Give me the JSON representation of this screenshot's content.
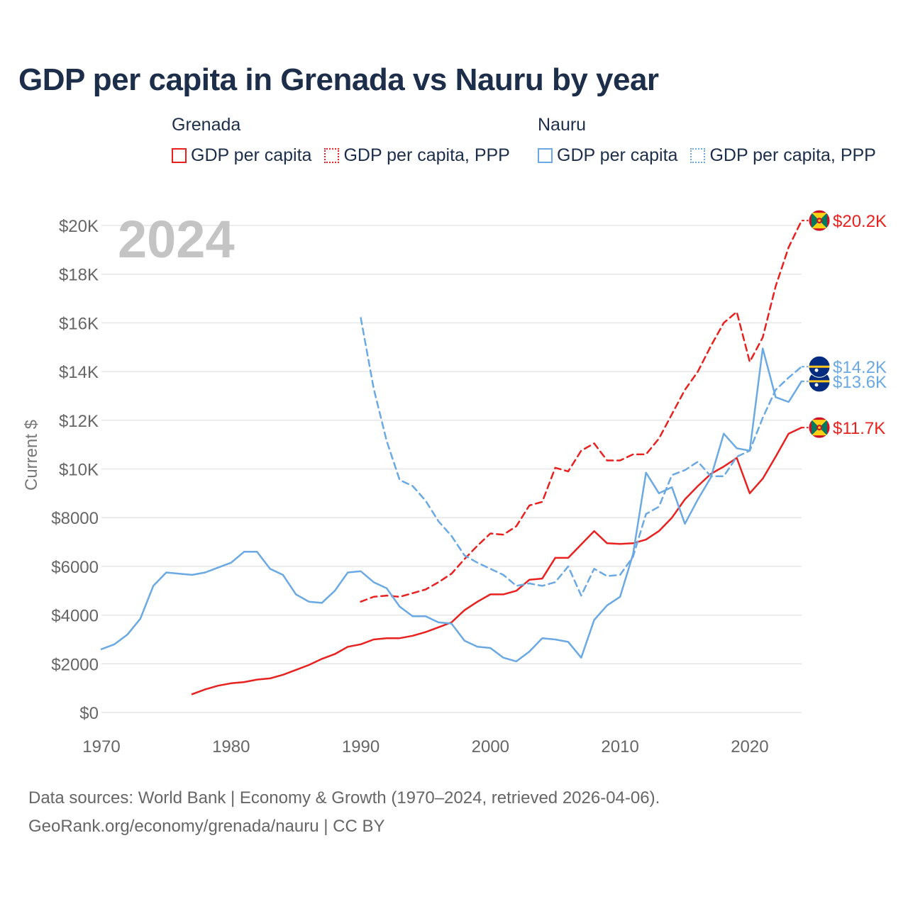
{
  "title": "GDP per capita in Grenada vs Nauru by year",
  "legend": {
    "groups": [
      {
        "name": "Grenada",
        "items": [
          {
            "label": "GDP per capita",
            "color": "#e8211f",
            "style": "solid"
          },
          {
            "label": "GDP per capita, PPP",
            "color": "#e8211f",
            "style": "dotted"
          }
        ]
      },
      {
        "name": "Nauru",
        "items": [
          {
            "label": "GDP per capita",
            "color": "#6aa9e3",
            "style": "solid"
          },
          {
            "label": "GDP per capita, PPP",
            "color": "#6aa9e3",
            "style": "dotted"
          }
        ]
      }
    ]
  },
  "chart_data": {
    "type": "line",
    "title": "GDP per capita in Grenada vs Nauru by year",
    "xlabel": "",
    "ylabel": "Current $",
    "year_label": "2024",
    "xlim": [
      1970,
      2024
    ],
    "ylim": [
      0,
      20000
    ],
    "x_ticks": [
      1970,
      1980,
      1990,
      2000,
      2010,
      2020
    ],
    "y_ticks": [
      0,
      2000,
      4000,
      6000,
      8000,
      10000,
      12000,
      14000,
      16000,
      18000,
      20000
    ],
    "y_tick_labels": [
      "$0",
      "$2000",
      "$4000",
      "$6000",
      "$8000",
      "$10K",
      "$12K",
      "$14K",
      "$16K",
      "$18K",
      "$20K"
    ],
    "grid": true,
    "series": [
      {
        "name": "Grenada GDP per capita",
        "color": "#e8211f",
        "dashed": false,
        "end_label": "$11.7K",
        "flag": "grenada",
        "x": [
          1977,
          1978,
          1979,
          1980,
          1981,
          1982,
          1983,
          1984,
          1985,
          1986,
          1987,
          1988,
          1989,
          1990,
          1991,
          1992,
          1993,
          1994,
          1995,
          1996,
          1997,
          1998,
          1999,
          2000,
          2001,
          2002,
          2003,
          2004,
          2005,
          2006,
          2007,
          2008,
          2009,
          2010,
          2011,
          2012,
          2013,
          2014,
          2015,
          2016,
          2017,
          2018,
          2019,
          2020,
          2021,
          2022,
          2023,
          2024
        ],
        "values": [
          750,
          950,
          1100,
          1200,
          1250,
          1350,
          1400,
          1550,
          1750,
          1950,
          2200,
          2400,
          2700,
          2800,
          3000,
          3050,
          3050,
          3150,
          3300,
          3500,
          3700,
          4200,
          4550,
          4850,
          4850,
          5000,
          5450,
          5500,
          6350,
          6350,
          6900,
          7450,
          6950,
          6920,
          6950,
          7100,
          7450,
          8000,
          8750,
          9300,
          9800,
          10100,
          10450,
          9000,
          9600,
          10500,
          11450,
          11700
        ]
      },
      {
        "name": "Grenada GDP per capita, PPP",
        "color": "#e8211f",
        "dashed": true,
        "end_label": "$20.2K",
        "flag": "grenada",
        "x": [
          1990,
          1991,
          1992,
          1993,
          1994,
          1995,
          1996,
          1997,
          1998,
          1999,
          2000,
          2001,
          2002,
          2003,
          2004,
          2005,
          2006,
          2007,
          2008,
          2009,
          2010,
          2011,
          2012,
          2013,
          2014,
          2015,
          2016,
          2017,
          2018,
          2019,
          2020,
          2021,
          2022,
          2023,
          2024
        ],
        "values": [
          4550,
          4750,
          4800,
          4750,
          4900,
          5050,
          5350,
          5700,
          6300,
          6850,
          7350,
          7300,
          7650,
          8500,
          8650,
          10050,
          9900,
          10750,
          11050,
          10350,
          10350,
          10600,
          10600,
          11250,
          12250,
          13250,
          14000,
          15050,
          16000,
          16450,
          14400,
          15400,
          17500,
          19100,
          20200
        ]
      },
      {
        "name": "Nauru GDP per capita",
        "color": "#6aa9e3",
        "dashed": false,
        "end_label": "$13.6K",
        "flag": "nauru",
        "x": [
          1970,
          1971,
          1972,
          1973,
          1974,
          1975,
          1976,
          1977,
          1978,
          1979,
          1980,
          1981,
          1982,
          1983,
          1984,
          1985,
          1986,
          1987,
          1988,
          1989,
          1990,
          1991,
          1992,
          1993,
          1994,
          1995,
          1996,
          1997,
          1998,
          1999,
          2000,
          2001,
          2002,
          2003,
          2004,
          2005,
          2006,
          2007,
          2008,
          2009,
          2010,
          2011,
          2012,
          2013,
          2014,
          2015,
          2016,
          2017,
          2018,
          2019,
          2020,
          2021,
          2022,
          2023,
          2024
        ],
        "values": [
          2600,
          2800,
          3200,
          3850,
          5200,
          5750,
          5700,
          5650,
          5750,
          5950,
          6150,
          6600,
          6600,
          5900,
          5650,
          4850,
          4550,
          4500,
          5000,
          5750,
          5800,
          5350,
          5100,
          4350,
          3950,
          3950,
          3700,
          3650,
          2950,
          2700,
          2650,
          2250,
          2100,
          2500,
          3050,
          3000,
          2900,
          2250,
          3800,
          4400,
          4750,
          6500,
          9850,
          9000,
          9250,
          7750,
          8750,
          9650,
          11450,
          10850,
          10750,
          14950,
          12950,
          12750,
          13600
        ]
      },
      {
        "name": "Nauru GDP per capita, PPP",
        "color": "#6aa9e3",
        "dashed": true,
        "end_label": "$14.2K",
        "flag": "nauru",
        "x": [
          1990,
          1991,
          1992,
          1993,
          1994,
          1995,
          1996,
          1997,
          1998,
          1999,
          2000,
          2001,
          2002,
          2003,
          2004,
          2005,
          2006,
          2007,
          2008,
          2009,
          2010,
          2011,
          2012,
          2013,
          2014,
          2015,
          2016,
          2017,
          2018,
          2019,
          2020,
          2021,
          2022,
          2023,
          2024
        ],
        "values": [
          16200,
          13300,
          11150,
          9550,
          9300,
          8700,
          7850,
          7250,
          6450,
          6150,
          5900,
          5650,
          5200,
          5300,
          5200,
          5350,
          6000,
          4800,
          5900,
          5600,
          5650,
          6400,
          8150,
          8450,
          9750,
          9950,
          10300,
          9700,
          9700,
          10500,
          10750,
          12100,
          13250,
          13750,
          14200
        ]
      }
    ]
  },
  "footer": {
    "line1": "Data sources: World Bank | Economy & Growth (1970–2024, retrieved 2026-04-06).",
    "line2": "GeoRank.org/economy/grenada/nauru | CC BY"
  }
}
